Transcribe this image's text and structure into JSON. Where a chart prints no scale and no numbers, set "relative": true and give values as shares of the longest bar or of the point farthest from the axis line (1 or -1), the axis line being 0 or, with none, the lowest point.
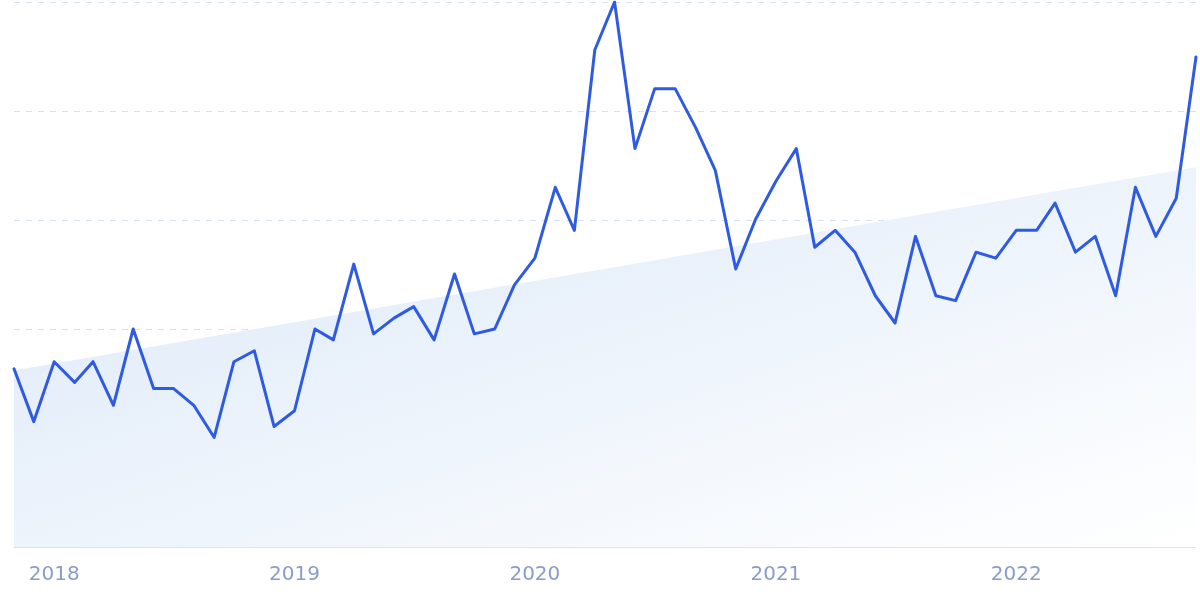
{
  "chart_data": {
    "type": "line",
    "relative": true,
    "grid": "y",
    "marker": "none",
    "x": [
      "2017-11",
      "2017-12",
      "2018-01",
      "2018-02",
      "2018-03",
      "2018-04",
      "2018-05",
      "2018-06",
      "2018-07",
      "2018-08",
      "2018-09",
      "2018-10",
      "2018-11",
      "2018-12",
      "2019-01",
      "2019-02",
      "2019-03",
      "2019-04",
      "2019-05",
      "2019-06",
      "2019-07",
      "2019-08",
      "2019-09",
      "2019-10",
      "2019-11",
      "2019-12",
      "2020-01",
      "2020-02",
      "2020-03",
      "2020-04",
      "2020-05",
      "2020-06",
      "2020-07",
      "2020-08",
      "2020-09",
      "2020-10",
      "2020-11",
      "2020-12",
      "2021-01",
      "2021-02",
      "2021-03",
      "2021-04",
      "2021-05",
      "2021-06",
      "2021-07",
      "2021-08",
      "2021-09",
      "2021-10",
      "2021-11",
      "2021-12",
      "2022-01",
      "2022-02",
      "2022-03",
      "2022-04",
      "2022-05",
      "2022-06",
      "2022-07",
      "2022-08",
      "2022-09",
      "2022-10"
    ],
    "xlim": [
      "2017-11",
      "2022-10"
    ],
    "xticks": [
      "2018",
      "2019",
      "2020",
      "2021",
      "2022"
    ],
    "series": [
      {
        "color": "#2f5be0",
        "values": [
          0.327,
          0.23,
          0.34,
          0.302,
          0.34,
          0.26,
          0.4,
          0.291,
          0.291,
          0.26,
          0.201,
          0.34,
          0.36,
          0.221,
          0.25,
          0.4,
          0.38,
          0.519,
          0.391,
          0.42,
          0.441,
          0.38,
          0.501,
          0.391,
          0.4,
          0.481,
          0.53,
          0.66,
          0.581,
          0.912,
          1,
          0.731,
          0.841,
          0.841,
          0.77,
          0.691,
          0.51,
          0.601,
          0.671,
          0.731,
          0.55,
          0.581,
          0.541,
          0.461,
          0.411,
          0.57,
          0.461,
          0.452,
          0.541,
          0.53,
          0.581,
          0.581,
          0.631,
          0.541,
          0.57,
          0.461,
          0.66,
          0.57,
          0.64,
          0.899
        ]
      },
      {
        "type": "area",
        "color": "#dbe8f8",
        "x": [
          "2017-11",
          "2022-10"
        ],
        "values": [
          0.324,
          0.697
        ]
      }
    ]
  }
}
